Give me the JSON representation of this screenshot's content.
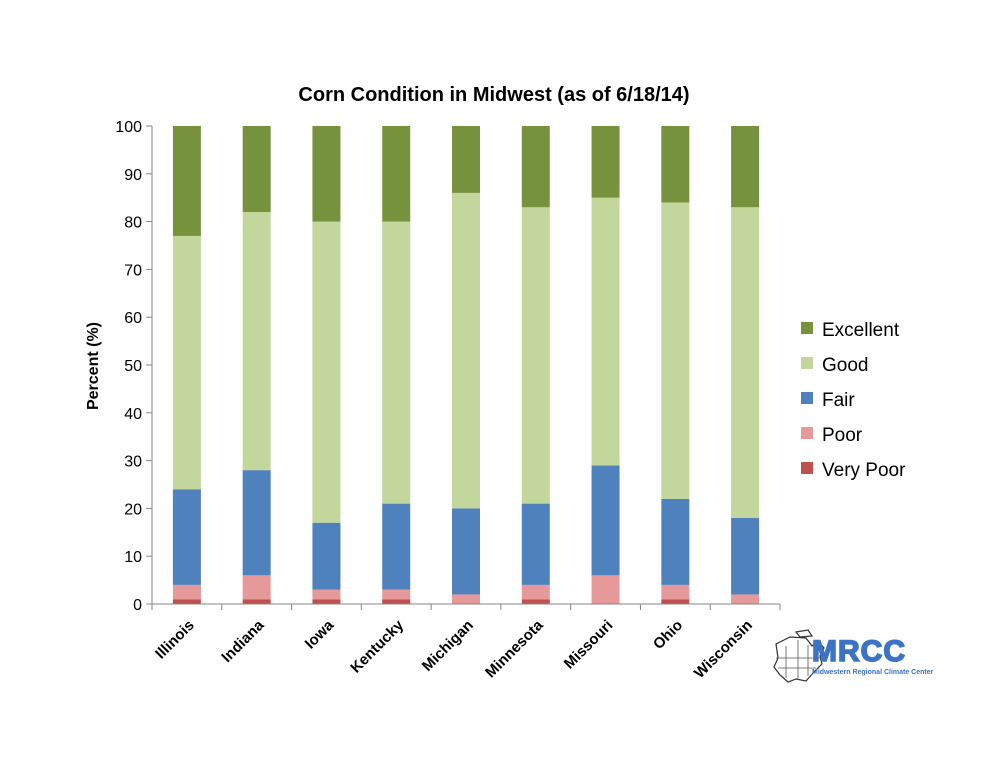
{
  "chart_data": {
    "type": "bar",
    "stacked": true,
    "title": "Corn Condition in Midwest (as of 6/18/14)",
    "xlabel": "",
    "ylabel": "Percent (%)",
    "ylim": [
      0,
      100
    ],
    "yticks": [
      0,
      10,
      20,
      30,
      40,
      50,
      60,
      70,
      80,
      90,
      100
    ],
    "grid": false,
    "legend_position": "right",
    "categories": [
      "Illinois",
      "Indiana",
      "Iowa",
      "Kentucky",
      "Michigan",
      "Minnesota",
      "Missouri",
      "Ohio",
      "Wisconsin"
    ],
    "series": [
      {
        "name": "Very Poor",
        "color": "#c0504d",
        "values": [
          1,
          1,
          1,
          1,
          0,
          1,
          0,
          1,
          0
        ]
      },
      {
        "name": "Poor",
        "color": "#e6999a",
        "values": [
          3,
          5,
          2,
          2,
          2,
          3,
          6,
          3,
          2
        ]
      },
      {
        "name": "Fair",
        "color": "#4f81bd",
        "values": [
          20,
          22,
          14,
          18,
          18,
          17,
          23,
          18,
          16
        ]
      },
      {
        "name": "Good",
        "color": "#c3d69b",
        "values": [
          53,
          54,
          63,
          59,
          66,
          62,
          56,
          62,
          65
        ]
      },
      {
        "name": "Excellent",
        "color": "#76923c",
        "values": [
          23,
          18,
          20,
          20,
          14,
          17,
          15,
          16,
          17
        ]
      }
    ]
  },
  "logo": {
    "name": "MRCC",
    "subtitle": "Midwestern Regional Climate Center",
    "color": "#3d73c4"
  }
}
